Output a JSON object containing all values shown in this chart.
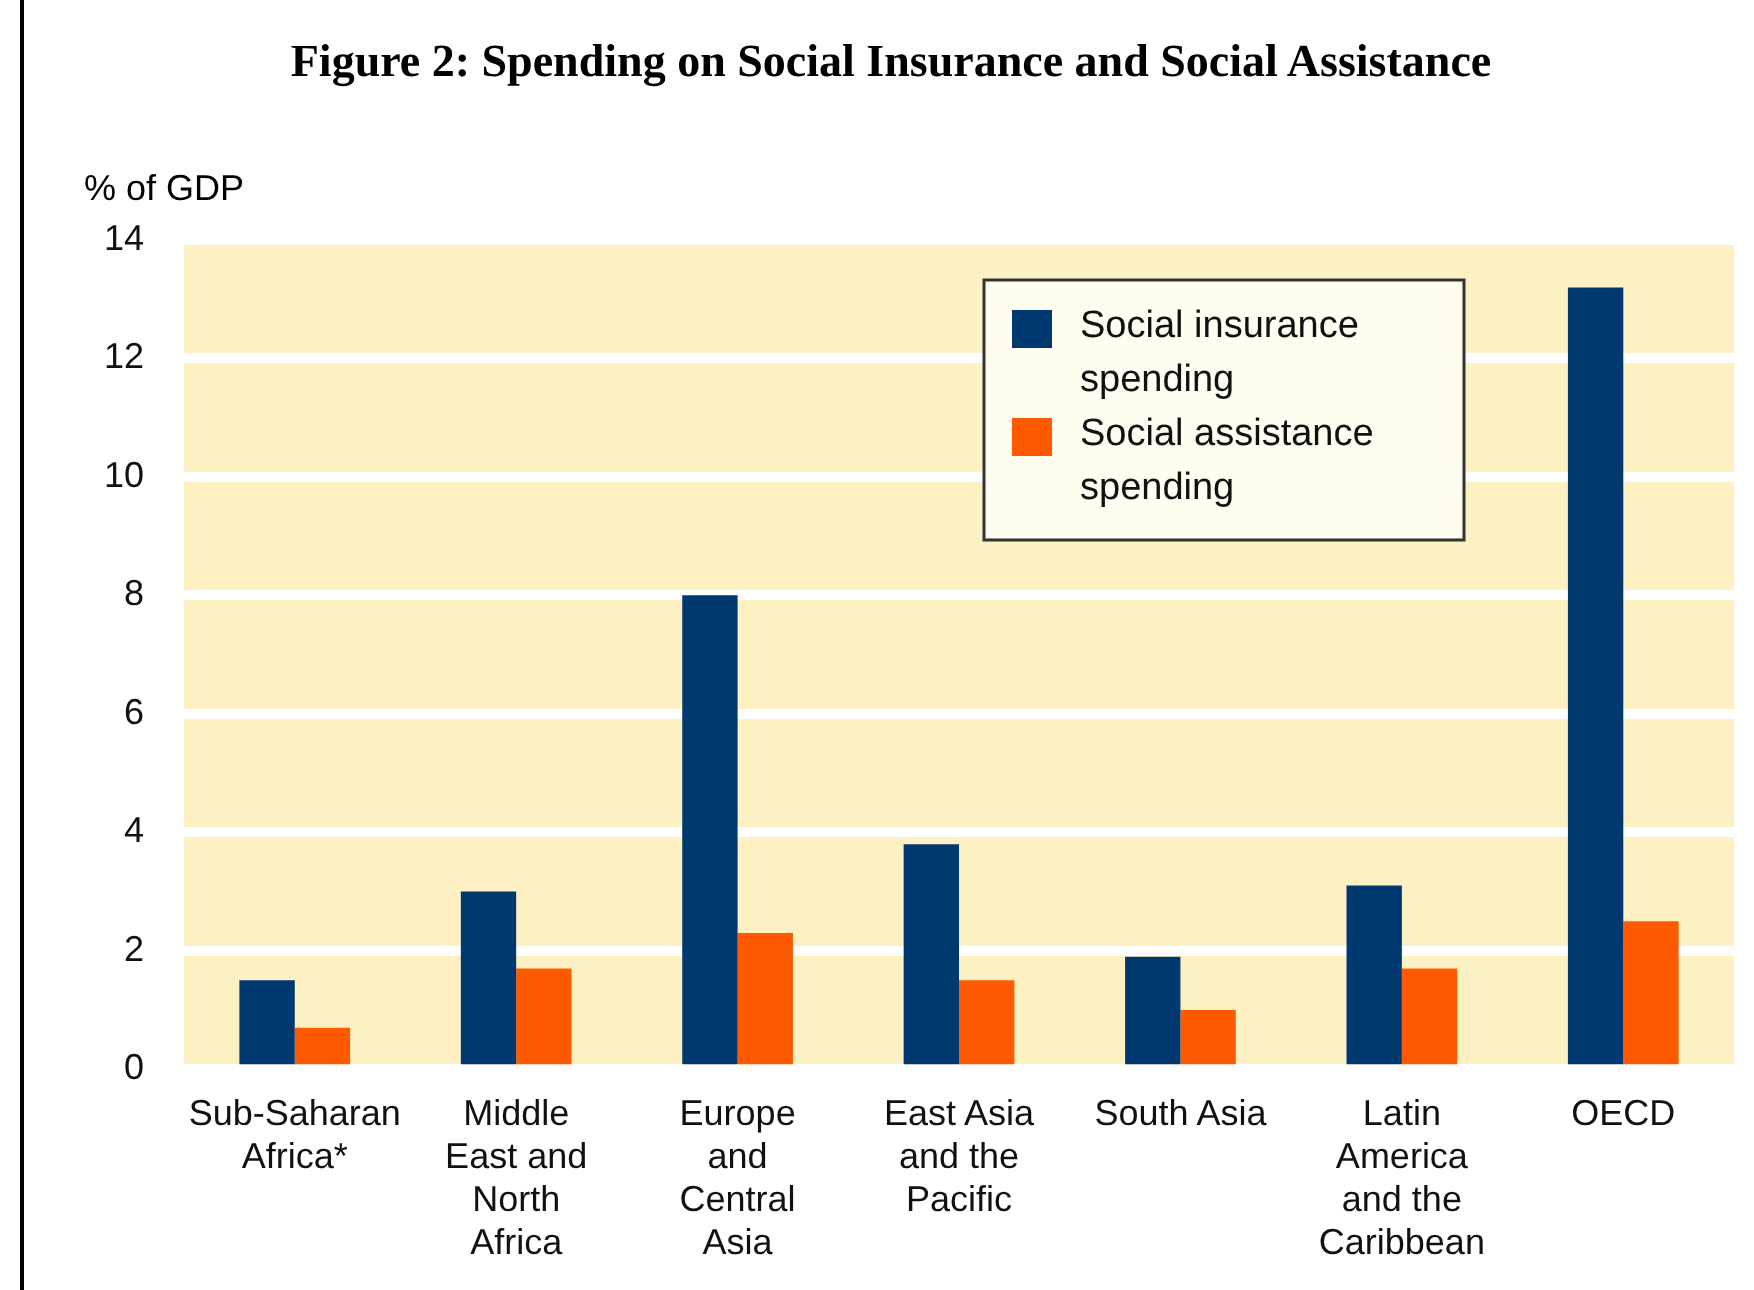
{
  "chart_data": {
    "type": "bar",
    "title": "Figure 2: Spending on Social Insurance and Social Assistance",
    "ylabel": "% of GDP",
    "categories": [
      "Sub-Saharan Africa*",
      "Middle East and North Africa",
      "Europe and Central Asia",
      "East Asia and the Pacific",
      "South Asia",
      "Latin America and the Caribbean",
      "OECD"
    ],
    "series": [
      {
        "name": "Social insurance spending",
        "color": "#003870",
        "values": [
          1.5,
          3.0,
          8.0,
          3.8,
          1.9,
          3.1,
          13.2
        ]
      },
      {
        "name": "Social assistance spending",
        "color": "#ff5a00",
        "values": [
          0.7,
          1.7,
          2.3,
          1.5,
          1.0,
          1.7,
          2.5
        ]
      }
    ],
    "ylim": [
      0,
      14
    ],
    "yticks": [
      0,
      2,
      4,
      6,
      8,
      10,
      12,
      14
    ],
    "grid": "y",
    "legend": "top right"
  }
}
